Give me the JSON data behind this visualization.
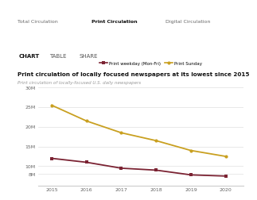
{
  "years": [
    2015,
    2016,
    2017,
    2018,
    2019,
    2020
  ],
  "weekday": [
    12000000,
    11000000,
    9500000,
    9000000,
    7800000,
    7500000
  ],
  "sunday": [
    25500000,
    21500000,
    18500000,
    16500000,
    14000000,
    12500000
  ],
  "weekday_color": "#7b2333",
  "sunday_color": "#c9a020",
  "bg_color": "#ffffff",
  "grid_color": "#e0e0e0",
  "yticks": [
    8000000,
    10000000,
    15000000,
    20000000,
    25000000,
    30000000
  ],
  "ytick_labels": [
    "8M",
    "10M",
    "15M",
    "20M",
    "25M",
    "30M"
  ],
  "ylim_low": 5000000,
  "ylim_high": 30500000,
  "legend_weekday": "Print weekday (Mon-Fri)",
  "legend_sunday": "Print Sunday",
  "tab_total": "Total Circulation",
  "tab_print": "Print Circulation",
  "tab_digital": "Digital Circulation",
  "nav_chart": "CHART",
  "nav_table": "TABLE",
  "nav_share": "SHARE",
  "title": "Print circulation of locally focused newspapers at its lowest since 2015",
  "subtitle": "Print circulation of locally-focused U.S. daily newspapers",
  "sep_color": "#cccccc",
  "tab_border_color": "#333333"
}
